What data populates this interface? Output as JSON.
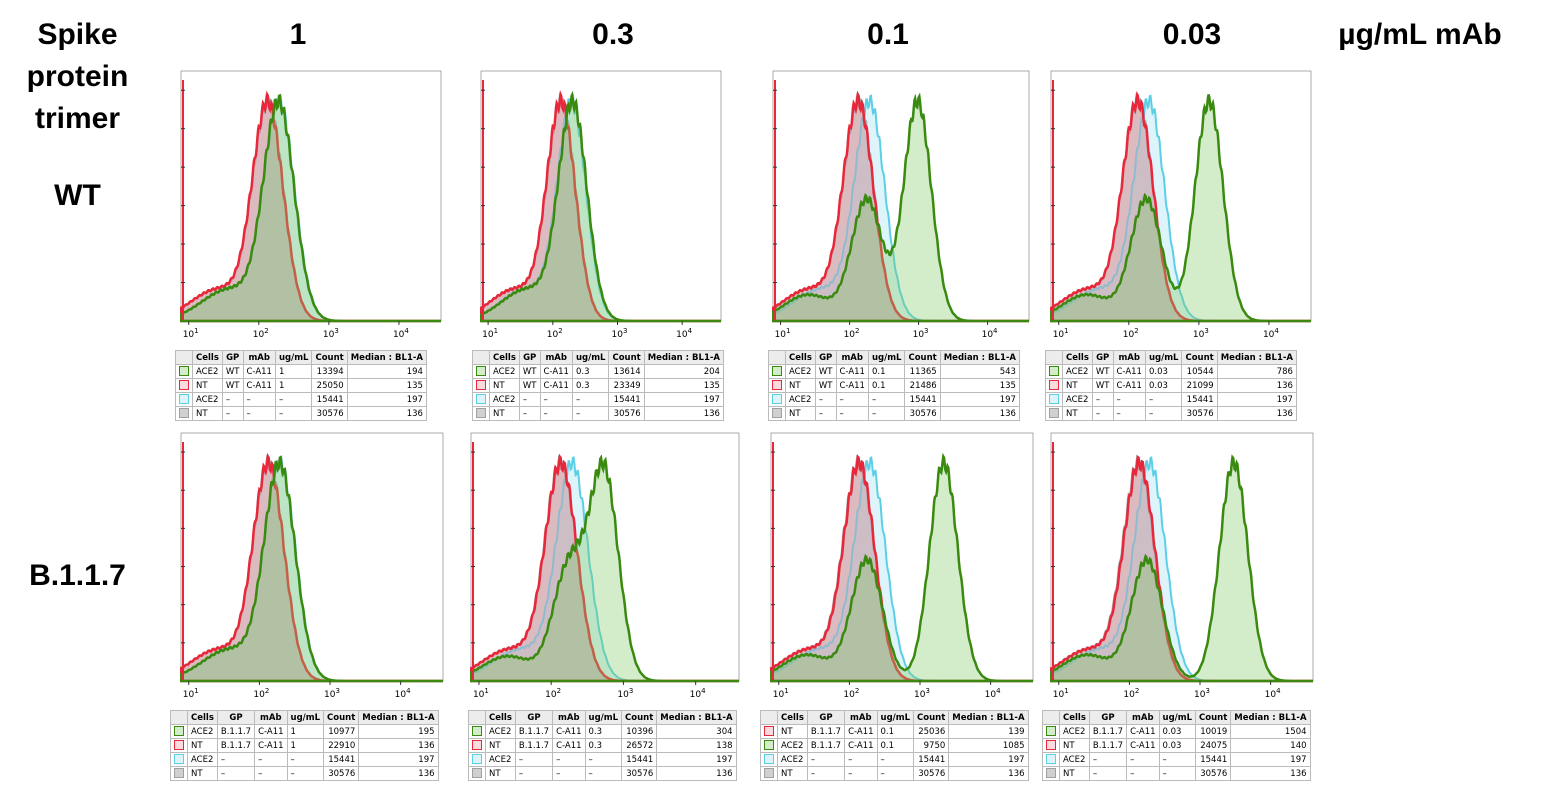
{
  "row_title": "Spike protein trimer",
  "row_labels": [
    "WT",
    "B.1.1.7"
  ],
  "column_labels": [
    "1",
    "0.3",
    "0.1",
    "0.03"
  ],
  "column_unit": "µg/mL mAb",
  "colors": {
    "ACE2_stained": "#3a8a10",
    "NT_stained": "#e8283a",
    "ACE2_unstained": "#5ccfe6",
    "NT_unstained": "#a0a0a0"
  },
  "chart_data": {
    "type": "area",
    "x_scale": "log",
    "x_tick_base": "10",
    "x_tick_exponents": [
      1,
      2,
      3,
      4
    ],
    "table_headers": [
      "Cells",
      "GP",
      "mAb",
      "ug/mL",
      "Count",
      "Median : BL1-A"
    ],
    "panels": [
      {
        "row": "WT",
        "conc": "1",
        "rows": [
          [
            "green",
            "ACE2",
            "WT",
            "C-A11",
            "1",
            "13394",
            "194"
          ],
          [
            "red",
            "NT",
            "WT",
            "C-A11",
            "1",
            "25050",
            "135"
          ],
          [
            "cyan",
            "ACE2",
            "–",
            "–",
            "–",
            "15441",
            "197"
          ],
          [
            "grey",
            "NT",
            "–",
            "–",
            "–",
            "30576",
            "136"
          ]
        ]
      },
      {
        "row": "WT",
        "conc": "0.3",
        "rows": [
          [
            "green",
            "ACE2",
            "WT",
            "C-A11",
            "0.3",
            "13614",
            "204"
          ],
          [
            "red",
            "NT",
            "WT",
            "C-A11",
            "0.3",
            "23349",
            "135"
          ],
          [
            "cyan",
            "ACE2",
            "–",
            "–",
            "–",
            "15441",
            "197"
          ],
          [
            "grey",
            "NT",
            "–",
            "–",
            "–",
            "30576",
            "136"
          ]
        ]
      },
      {
        "row": "WT",
        "conc": "0.1",
        "rows": [
          [
            "green",
            "ACE2",
            "WT",
            "C-A11",
            "0.1",
            "11365",
            "543"
          ],
          [
            "red",
            "NT",
            "WT",
            "C-A11",
            "0.1",
            "21486",
            "135"
          ],
          [
            "cyan",
            "ACE2",
            "–",
            "–",
            "–",
            "15441",
            "197"
          ],
          [
            "grey",
            "NT",
            "–",
            "–",
            "–",
            "30576",
            "136"
          ]
        ]
      },
      {
        "row": "WT",
        "conc": "0.03",
        "rows": [
          [
            "green",
            "ACE2",
            "WT",
            "C-A11",
            "0.03",
            "10544",
            "786"
          ],
          [
            "red",
            "NT",
            "WT",
            "C-A11",
            "0.03",
            "21099",
            "136"
          ],
          [
            "cyan",
            "ACE2",
            "–",
            "–",
            "–",
            "15441",
            "197"
          ],
          [
            "grey",
            "NT",
            "–",
            "–",
            "–",
            "30576",
            "136"
          ]
        ]
      },
      {
        "row": "B.1.1.7",
        "conc": "1",
        "rows": [
          [
            "green",
            "ACE2",
            "B.1.1.7",
            "C-A11",
            "1",
            "10977",
            "195"
          ],
          [
            "red",
            "NT",
            "B.1.1.7",
            "C-A11",
            "1",
            "22910",
            "136"
          ],
          [
            "cyan",
            "ACE2",
            "–",
            "–",
            "–",
            "15441",
            "197"
          ],
          [
            "grey",
            "NT",
            "–",
            "–",
            "–",
            "30576",
            "136"
          ]
        ]
      },
      {
        "row": "B.1.1.7",
        "conc": "0.3",
        "rows": [
          [
            "green",
            "ACE2",
            "B.1.1.7",
            "C-A11",
            "0.3",
            "10396",
            "304"
          ],
          [
            "red",
            "NT",
            "B.1.1.7",
            "C-A11",
            "0.3",
            "26572",
            "138"
          ],
          [
            "cyan",
            "ACE2",
            "–",
            "–",
            "–",
            "15441",
            "197"
          ],
          [
            "grey",
            "NT",
            "–",
            "–",
            "–",
            "30576",
            "136"
          ]
        ]
      },
      {
        "row": "B.1.1.7",
        "conc": "0.1",
        "rows": [
          [
            "red",
            "NT",
            "B.1.1.7",
            "C-A11",
            "0.1",
            "25036",
            "139"
          ],
          [
            "green",
            "ACE2",
            "B.1.1.7",
            "C-A11",
            "0.1",
            "9750",
            "1085"
          ],
          [
            "cyan",
            "ACE2",
            "–",
            "–",
            "–",
            "15441",
            "197"
          ],
          [
            "grey",
            "NT",
            "–",
            "–",
            "–",
            "30576",
            "136"
          ]
        ]
      },
      {
        "row": "B.1.1.7",
        "conc": "0.03",
        "rows": [
          [
            "green",
            "ACE2",
            "B.1.1.7",
            "C-A11",
            "0.03",
            "10019",
            "1504"
          ],
          [
            "red",
            "NT",
            "B.1.1.7",
            "C-A11",
            "0.03",
            "24075",
            "140"
          ],
          [
            "cyan",
            "ACE2",
            "–",
            "–",
            "–",
            "15441",
            "197"
          ],
          [
            "grey",
            "NT",
            "–",
            "–",
            "–",
            "30576",
            "136"
          ]
        ]
      }
    ]
  }
}
